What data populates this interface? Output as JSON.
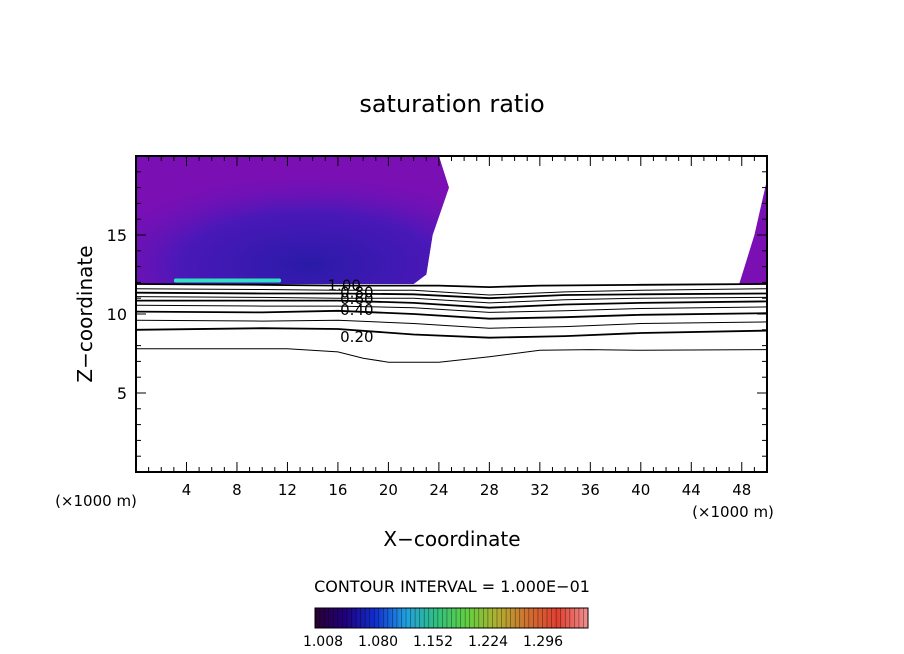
{
  "chart_data": {
    "type": "contour",
    "title": "saturation ratio",
    "xlabel": "X−coordinate",
    "ylabel": "Z−coordinate",
    "x_unit_left": "(×1000 m)",
    "x_unit_right": "(×1000 m)",
    "xlim": [
      0,
      50
    ],
    "ylim": [
      0,
      20
    ],
    "x_ticks": [
      {
        "value": 4,
        "label": "4"
      },
      {
        "value": 8,
        "label": "8"
      },
      {
        "value": 12,
        "label": "12"
      },
      {
        "value": 16,
        "label": "16"
      },
      {
        "value": 20,
        "label": "20"
      },
      {
        "value": 24,
        "label": "24"
      },
      {
        "value": 28,
        "label": "28"
      },
      {
        "value": 32,
        "label": "32"
      },
      {
        "value": 36,
        "label": "36"
      },
      {
        "value": 40,
        "label": "40"
      },
      {
        "value": 44,
        "label": "44"
      },
      {
        "value": 48,
        "label": "48"
      }
    ],
    "y_ticks": [
      {
        "value": 5,
        "label": "5"
      },
      {
        "value": 10,
        "label": "10"
      },
      {
        "value": 15,
        "label": "15"
      }
    ],
    "contour_interval_label": "CONTOUR INTERVAL = 1.000E−01",
    "colorbar": {
      "tick_labels": [
        "1.008",
        "1.080",
        "1.152",
        "1.224",
        "1.296"
      ],
      "colors": [
        "#2a0030",
        "#200080",
        "#1030d0",
        "#20a0e0",
        "#30c080",
        "#60d040",
        "#b0b030",
        "#d07030",
        "#e04030",
        "#f09090"
      ]
    },
    "contour_labels": [
      {
        "text": "1.00",
        "x": 16.5,
        "z": 11.8
      },
      {
        "text": "0.80",
        "x": 17.5,
        "z": 11.35
      },
      {
        "text": "0.60",
        "x": 17.5,
        "z": 10.95
      },
      {
        "text": "0.40",
        "x": 17.5,
        "z": 10.25
      },
      {
        "text": "0.20",
        "x": 17.5,
        "z": 8.55
      }
    ],
    "contour_lines": [
      {
        "level": 1.0,
        "points": [
          [
            0,
            11.9
          ],
          [
            10,
            11.85
          ],
          [
            16,
            11.8
          ],
          [
            24,
            11.8
          ],
          [
            28,
            11.7
          ],
          [
            32,
            11.8
          ],
          [
            40,
            11.85
          ],
          [
            50,
            11.9
          ]
        ]
      },
      {
        "level": 0.9,
        "points": [
          [
            0,
            11.6
          ],
          [
            10,
            11.55
          ],
          [
            16,
            11.5
          ],
          [
            22,
            11.5
          ],
          [
            28,
            11.2
          ],
          [
            34,
            11.4
          ],
          [
            40,
            11.5
          ],
          [
            50,
            11.6
          ]
        ]
      },
      {
        "level": 0.8,
        "points": [
          [
            0,
            11.35
          ],
          [
            10,
            11.3
          ],
          [
            16,
            11.3
          ],
          [
            22,
            11.25
          ],
          [
            28,
            11.0
          ],
          [
            34,
            11.2
          ],
          [
            40,
            11.25
          ],
          [
            50,
            11.3
          ]
        ]
      },
      {
        "level": 0.7,
        "points": [
          [
            0,
            11.1
          ],
          [
            10,
            11.05
          ],
          [
            16,
            11.0
          ],
          [
            22,
            11.0
          ],
          [
            28,
            10.7
          ],
          [
            34,
            10.9
          ],
          [
            40,
            11.0
          ],
          [
            50,
            11.05
          ]
        ]
      },
      {
        "level": 0.6,
        "points": [
          [
            0,
            10.85
          ],
          [
            10,
            10.85
          ],
          [
            16,
            10.85
          ],
          [
            22,
            10.7
          ],
          [
            28,
            10.4
          ],
          [
            34,
            10.6
          ],
          [
            40,
            10.7
          ],
          [
            50,
            10.8
          ]
        ]
      },
      {
        "level": 0.5,
        "points": [
          [
            0,
            10.55
          ],
          [
            10,
            10.5
          ],
          [
            16,
            10.5
          ],
          [
            22,
            10.4
          ],
          [
            28,
            10.1
          ],
          [
            34,
            10.2
          ],
          [
            40,
            10.35
          ],
          [
            50,
            10.45
          ]
        ]
      },
      {
        "level": 0.4,
        "points": [
          [
            0,
            10.15
          ],
          [
            10,
            10.1
          ],
          [
            16,
            10.2
          ],
          [
            22,
            10.0
          ],
          [
            28,
            9.7
          ],
          [
            34,
            9.8
          ],
          [
            40,
            9.95
          ],
          [
            50,
            10.05
          ]
        ]
      },
      {
        "level": 0.3,
        "points": [
          [
            0,
            9.6
          ],
          [
            10,
            9.55
          ],
          [
            16,
            9.6
          ],
          [
            22,
            9.4
          ],
          [
            28,
            9.1
          ],
          [
            34,
            9.2
          ],
          [
            40,
            9.4
          ],
          [
            50,
            9.5
          ]
        ]
      },
      {
        "level": 0.2,
        "points": [
          [
            0,
            9.0
          ],
          [
            10,
            9.1
          ],
          [
            16,
            9.05
          ],
          [
            22,
            8.7
          ],
          [
            28,
            8.5
          ],
          [
            34,
            8.6
          ],
          [
            40,
            8.8
          ],
          [
            50,
            8.95
          ]
        ]
      },
      {
        "level": 0.1,
        "points": [
          [
            0,
            7.8
          ],
          [
            12,
            7.8
          ],
          [
            16,
            7.6
          ],
          [
            18,
            7.2
          ],
          [
            20,
            6.95
          ],
          [
            24,
            6.95
          ],
          [
            28,
            7.3
          ],
          [
            32,
            7.7
          ],
          [
            36,
            7.75
          ],
          [
            40,
            7.7
          ],
          [
            50,
            7.75
          ]
        ]
      }
    ],
    "shaded_regions": [
      {
        "name": "left",
        "points": [
          [
            0,
            20
          ],
          [
            24,
            20
          ],
          [
            24.8,
            18
          ],
          [
            23.5,
            15
          ],
          [
            23,
            12.5
          ],
          [
            22,
            11.9
          ],
          [
            0,
            11.9
          ]
        ]
      },
      {
        "name": "right",
        "points": [
          [
            50,
            20
          ],
          [
            50,
            11.9
          ],
          [
            47.8,
            11.9
          ],
          [
            49,
            15
          ],
          [
            50,
            18.5
          ]
        ]
      }
    ]
  }
}
